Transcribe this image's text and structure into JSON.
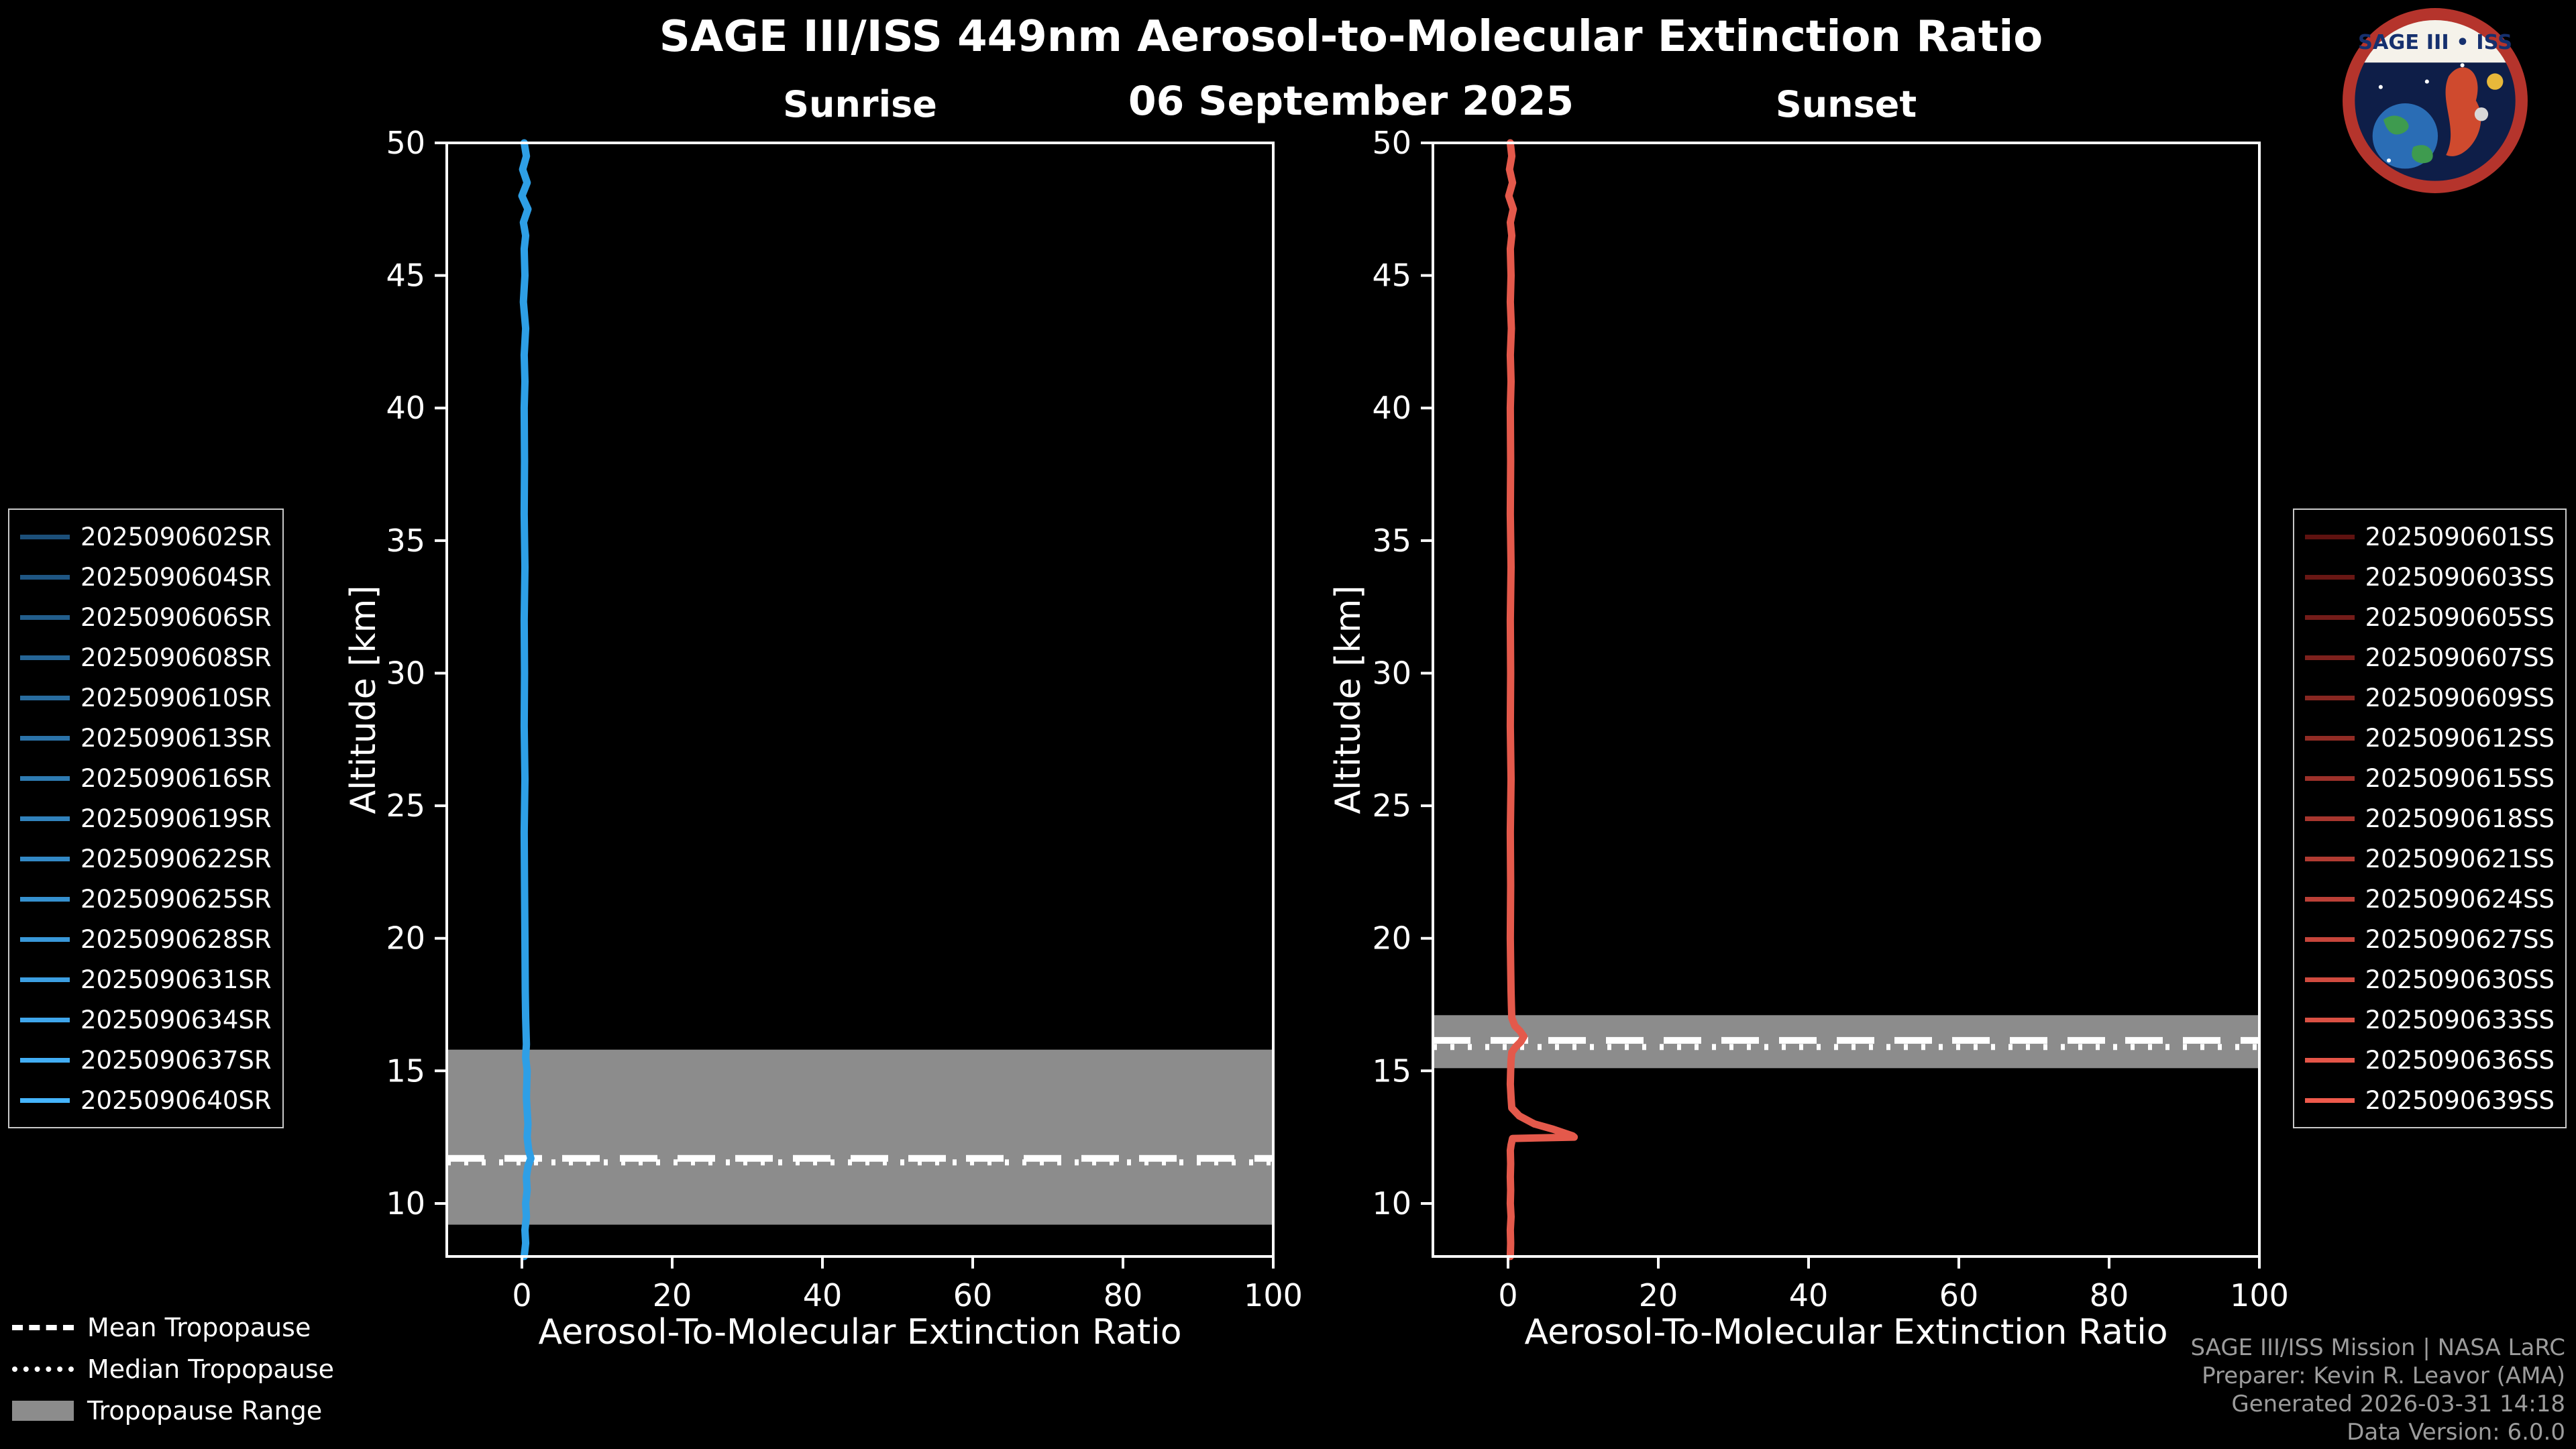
{
  "header": {
    "title": "SAGE III/ISS 449nm Aerosol-to-Molecular Extinction Ratio",
    "date": "06 September 2025"
  },
  "logo": {
    "title": "SAGE III • ISS"
  },
  "footer": {
    "lines": [
      "SAGE III/ISS Mission | NASA LaRC",
      "Preparer: Kevin R. Leavor (AMA)",
      "Generated 2026-03-31 14:18",
      "Data Version: 6.0.0"
    ]
  },
  "tropopause_legend": {
    "items": [
      {
        "label": "Mean Tropopause",
        "style": "dashed"
      },
      {
        "label": "Median Tropopause",
        "style": "dotted"
      },
      {
        "label": "Tropopause Range",
        "style": "patch"
      }
    ]
  },
  "legends": [
    {
      "name": "sunrise",
      "items": [
        {
          "label": "2025090602SR",
          "color": "#1c4f79"
        },
        {
          "label": "2025090604SR",
          "color": "#1f5683"
        },
        {
          "label": "2025090606SR",
          "color": "#225e8c"
        },
        {
          "label": "2025090608SR",
          "color": "#256596"
        },
        {
          "label": "2025090610SR",
          "color": "#286c9f"
        },
        {
          "label": "2025090613SR",
          "color": "#2b73a9"
        },
        {
          "label": "2025090616SR",
          "color": "#2e7bb2"
        },
        {
          "label": "2025090619SR",
          "color": "#3182bc"
        },
        {
          "label": "2025090622SR",
          "color": "#3389c6"
        },
        {
          "label": "2025090625SR",
          "color": "#3691cf"
        },
        {
          "label": "2025090628SR",
          "color": "#3998d9"
        },
        {
          "label": "2025090631SR",
          "color": "#3c9fe2"
        },
        {
          "label": "2025090634SR",
          "color": "#3fa6ec"
        },
        {
          "label": "2025090637SR",
          "color": "#42aef5"
        },
        {
          "label": "2025090640SR",
          "color": "#45b5ff"
        }
      ]
    },
    {
      "name": "sunset",
      "items": [
        {
          "label": "2025090601SS",
          "color": "#5f1210"
        },
        {
          "label": "2025090603SS",
          "color": "#691714"
        },
        {
          "label": "2025090605SS",
          "color": "#741c19"
        },
        {
          "label": "2025090607SS",
          "color": "#7e211d"
        },
        {
          "label": "2025090609SS",
          "color": "#882721"
        },
        {
          "label": "2025090612SS",
          "color": "#922c25"
        },
        {
          "label": "2025090615SS",
          "color": "#9d312a"
        },
        {
          "label": "2025090618SS",
          "color": "#a7362e"
        },
        {
          "label": "2025090621SS",
          "color": "#b13b32"
        },
        {
          "label": "2025090624SS",
          "color": "#bb4037"
        },
        {
          "label": "2025090627SS",
          "color": "#c6453b"
        },
        {
          "label": "2025090630SS",
          "color": "#d04b3f"
        },
        {
          "label": "2025090633SS",
          "color": "#da5043"
        },
        {
          "label": "2025090636SS",
          "color": "#e55548"
        },
        {
          "label": "2025090639SS",
          "color": "#ef5a4c"
        }
      ]
    }
  ],
  "chart_data": [
    {
      "type": "line",
      "title": "Sunrise",
      "xlabel": "Aerosol-To-Molecular Extinction Ratio",
      "ylabel": "Altitude [km]",
      "xlim": [
        -10,
        100
      ],
      "ylim": [
        8,
        50
      ],
      "xticks": [
        0,
        20,
        40,
        60,
        80,
        100
      ],
      "yticks": [
        10,
        15,
        20,
        25,
        30,
        35,
        40,
        45,
        50
      ],
      "line_color": "#2e9fe6",
      "band_color": "#8c8c8c",
      "tropopause": {
        "range_km": [
          9.2,
          15.8
        ],
        "mean_km": 11.7,
        "median_km": 11.55
      },
      "profile": {
        "altitude_km": [
          50,
          49.5,
          49,
          48.5,
          48,
          47.5,
          47,
          46.5,
          46,
          45,
          44,
          43,
          42,
          41,
          40,
          38,
          36,
          34,
          32,
          30,
          28,
          26,
          24,
          22,
          20,
          18,
          17,
          16,
          15.5,
          15,
          14,
          13,
          12.5,
          12,
          11.7,
          11.4,
          11,
          10.5,
          10,
          9.5,
          9,
          8.5,
          8
        ],
        "ratio": [
          0.3,
          0.6,
          0.1,
          0.7,
          0.0,
          0.8,
          0.2,
          0.5,
          0.3,
          0.4,
          0.2,
          0.5,
          0.3,
          0.4,
          0.3,
          0.35,
          0.3,
          0.4,
          0.3,
          0.35,
          0.3,
          0.4,
          0.3,
          0.35,
          0.4,
          0.45,
          0.5,
          0.6,
          0.5,
          0.7,
          0.6,
          0.8,
          0.7,
          0.9,
          1.2,
          0.8,
          0.6,
          0.7,
          0.5,
          0.6,
          0.4,
          0.5,
          0.3
        ]
      }
    },
    {
      "type": "line",
      "title": "Sunset",
      "xlabel": "Aerosol-To-Molecular Extinction Ratio",
      "ylabel": "Altitude [km]",
      "xlim": [
        -10,
        100
      ],
      "ylim": [
        8,
        50
      ],
      "xticks": [
        0,
        20,
        40,
        60,
        80,
        100
      ],
      "yticks": [
        10,
        15,
        20,
        25,
        30,
        35,
        40,
        45,
        50
      ],
      "line_color": "#e4594b",
      "band_color": "#8c8c8c",
      "tropopause": {
        "range_km": [
          15.1,
          17.1
        ],
        "mean_km": 16.15,
        "median_km": 15.9
      },
      "profile": {
        "altitude_km": [
          50,
          49.5,
          49,
          48.5,
          48,
          47.5,
          47,
          46.5,
          46,
          45,
          44,
          43,
          42,
          41,
          40,
          38,
          36,
          34,
          32,
          30,
          28,
          26,
          24,
          22,
          20,
          19,
          18,
          17.5,
          17,
          16.7,
          16.5,
          16.3,
          16.1,
          15.9,
          15.7,
          15.4,
          15,
          14.5,
          14,
          13.6,
          13.3,
          13.0,
          12.8,
          12.55,
          12.5,
          12.45,
          12.2,
          12,
          11.5,
          11,
          10.5,
          10,
          9.5,
          9,
          8.5,
          8
        ],
        "ratio": [
          0.3,
          0.5,
          0.2,
          0.6,
          0.1,
          0.7,
          0.3,
          0.5,
          0.3,
          0.4,
          0.3,
          0.45,
          0.3,
          0.4,
          0.3,
          0.35,
          0.3,
          0.4,
          0.3,
          0.35,
          0.3,
          0.4,
          0.3,
          0.35,
          0.3,
          0.35,
          0.4,
          0.45,
          0.5,
          0.9,
          1.6,
          2.1,
          1.7,
          1.0,
          0.5,
          0.4,
          0.35,
          0.3,
          0.4,
          0.5,
          1.5,
          3.5,
          6.0,
          8.6,
          8.8,
          0.6,
          0.4,
          0.3,
          0.35,
          0.3,
          0.35,
          0.3,
          0.4,
          0.3,
          0.35,
          0.3
        ]
      }
    }
  ]
}
